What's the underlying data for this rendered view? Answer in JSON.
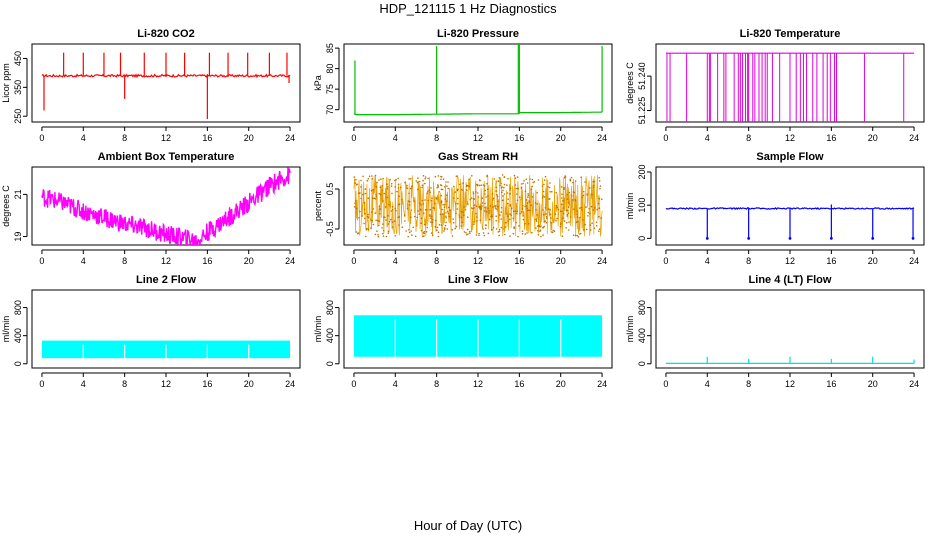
{
  "page": {
    "title": "HDP_121115  1 Hz Diagnostics",
    "xlabel": "Hour of Day (UTC)"
  },
  "chart_data": [
    {
      "type": "line",
      "title": "Li-820 CO2",
      "ylabel": "Licor ppm",
      "color": "#ff0000",
      "xlim": [
        0,
        24
      ],
      "ylim": [
        230,
        500
      ],
      "xticks": [
        0,
        4,
        8,
        12,
        16,
        20,
        24
      ],
      "xtick_labels": [
        "0",
        "4",
        "8",
        "12",
        "16",
        "20",
        "24"
      ],
      "yticks": [
        250,
        350,
        450
      ],
      "ytick_labels": [
        "250",
        "350",
        "450"
      ],
      "baseline": 390,
      "band": 8,
      "spikes": [
        [
          0.2,
          270
        ],
        [
          2.1,
          470
        ],
        [
          4.0,
          470
        ],
        [
          6.0,
          470
        ],
        [
          7.6,
          470
        ],
        [
          8.0,
          310
        ],
        [
          9.9,
          470
        ],
        [
          12.0,
          470
        ],
        [
          13.8,
          470
        ],
        [
          16.0,
          240
        ],
        [
          16.2,
          470
        ],
        [
          18.0,
          470
        ],
        [
          19.9,
          470
        ],
        [
          22.0,
          470
        ],
        [
          23.7,
          470
        ],
        [
          23.9,
          365
        ]
      ]
    },
    {
      "type": "line",
      "title": "Li-820 Pressure",
      "ylabel": "kPa",
      "color": "#00c000",
      "xlim": [
        0,
        24
      ],
      "ylim": [
        67,
        86
      ],
      "xticks": [
        0,
        4,
        8,
        12,
        16,
        20,
        24
      ],
      "xtick_labels": [
        "0",
        "4",
        "8",
        "12",
        "16",
        "20",
        "24"
      ],
      "yticks": [
        70,
        75,
        80,
        85
      ],
      "ytick_labels": [
        "70",
        "75",
        "80",
        "85"
      ],
      "baseline_series": {
        "x": [
          0,
          0.2,
          4,
          8,
          12,
          15.9,
          16.1,
          20,
          23.9
        ],
        "y": [
          69.0,
          68.8,
          68.8,
          68.9,
          69.0,
          69.0,
          69.3,
          69.3,
          69.4
        ]
      },
      "spikes": [
        [
          0.1,
          82
        ],
        [
          8.0,
          85.5
        ],
        [
          15.9,
          86
        ],
        [
          16.0,
          86
        ],
        [
          24.0,
          85.5
        ]
      ]
    },
    {
      "type": "line",
      "title": "Li-820 Temperature",
      "ylabel": "degrees C",
      "color": "#e000e0",
      "xlim": [
        0,
        24
      ],
      "ylim": [
        51.22,
        51.254
      ],
      "xticks": [
        0,
        4,
        8,
        12,
        16,
        20,
        24
      ],
      "xtick_labels": [
        "0",
        "4",
        "8",
        "12",
        "16",
        "20",
        "24"
      ],
      "yticks": [
        51.225,
        51.24
      ],
      "ytick_labels": [
        "51.225",
        "51.240"
      ],
      "top_value": 51.25,
      "drops": [
        0.1,
        0.4,
        2.0,
        4.0,
        4.2,
        4.3,
        5.0,
        5.6,
        5.8,
        6.6,
        7.0,
        7.2,
        7.4,
        7.7,
        7.9,
        8.0,
        8.4,
        8.6,
        9.0,
        9.3,
        9.6,
        9.8,
        10.3,
        11.0,
        12.0,
        12.6,
        13.0,
        13.3,
        13.6,
        14.2,
        14.6,
        15.2,
        15.6,
        15.9,
        16.3,
        16.5,
        19.2,
        23.0
      ]
    },
    {
      "type": "line",
      "title": "Ambient Box Temperature",
      "ylabel": "degrees C",
      "color": "#ff00ff",
      "xlim": [
        0,
        24
      ],
      "ylim": [
        18.6,
        22.3
      ],
      "xticks": [
        0,
        4,
        8,
        12,
        16,
        20,
        24
      ],
      "xtick_labels": [
        "0",
        "4",
        "8",
        "12",
        "16",
        "20",
        "24"
      ],
      "yticks": [
        19,
        21
      ],
      "ytick_labels": [
        "19",
        "21"
      ],
      "trend": {
        "x": [
          0,
          2,
          4,
          6,
          8,
          10,
          12,
          14,
          15,
          16,
          18,
          20,
          22,
          23,
          24
        ],
        "y": [
          20.9,
          20.6,
          20.2,
          19.9,
          19.6,
          19.4,
          19.1,
          18.9,
          18.8,
          19.2,
          19.9,
          20.6,
          21.4,
          21.7,
          21.9
        ]
      },
      "band": 0.45
    },
    {
      "type": "line",
      "title": "Gas Stream RH",
      "ylabel": "percent",
      "color": "#e8a000",
      "xlim": [
        0,
        24
      ],
      "ylim": [
        -0.9,
        1.05
      ],
      "xticks": [
        0,
        4,
        8,
        12,
        16,
        20,
        24
      ],
      "xtick_labels": [
        "0",
        "4",
        "8",
        "12",
        "16",
        "20",
        "24"
      ],
      "yticks": [
        -0.5,
        0.5
      ],
      "ytick_labels": [
        "-0.5",
        "0.5"
      ],
      "band_min": -0.7,
      "band_max": 0.85
    },
    {
      "type": "line",
      "title": "Sample Flow",
      "ylabel": "ml/min",
      "color": "#0000ff",
      "xlim": [
        0,
        24
      ],
      "ylim": [
        -20,
        215
      ],
      "xticks": [
        0,
        4,
        8,
        12,
        16,
        20,
        24
      ],
      "xtick_labels": [
        "0",
        "4",
        "8",
        "12",
        "16",
        "20",
        "24"
      ],
      "yticks": [
        0,
        100,
        200
      ],
      "ytick_labels": [
        "0",
        "100",
        "200"
      ],
      "baseline": 90,
      "band": 4,
      "drops": [
        [
          4.0,
          0
        ],
        [
          8.0,
          0
        ],
        [
          12.0,
          0
        ],
        [
          16.0,
          0
        ],
        [
          20.0,
          0
        ],
        [
          23.9,
          0
        ]
      ],
      "spikes": [
        [
          16.0,
          102
        ]
      ]
    },
    {
      "type": "area",
      "title": "Line 2 Flow",
      "ylabel": "ml/min",
      "color": "#00ffff",
      "xlim": [
        0,
        24
      ],
      "ylim": [
        -60,
        1050
      ],
      "xticks": [
        0,
        4,
        8,
        12,
        16,
        20,
        24
      ],
      "xtick_labels": [
        "0",
        "4",
        "8",
        "12",
        "16",
        "20",
        "24"
      ],
      "yticks": [
        0,
        400,
        800
      ],
      "ytick_labels": [
        "0",
        "400",
        "800"
      ],
      "band_min": 80,
      "band_max": 330,
      "gaps": [
        4.0,
        8.0,
        12.0,
        16.0,
        20.0
      ]
    },
    {
      "type": "area",
      "title": "Line 3 Flow",
      "ylabel": "ml/min",
      "color": "#00ffff",
      "xlim": [
        0,
        24
      ],
      "ylim": [
        -60,
        1050
      ],
      "xticks": [
        0,
        4,
        8,
        12,
        16,
        20,
        24
      ],
      "xtick_labels": [
        "0",
        "4",
        "8",
        "12",
        "16",
        "20",
        "24"
      ],
      "yticks": [
        0,
        400,
        800
      ],
      "ytick_labels": [
        "0",
        "400",
        "800"
      ],
      "band_min": 100,
      "band_max": 690,
      "gaps": [
        4.0,
        8.0,
        12.0,
        16.0,
        20.0
      ]
    },
    {
      "type": "line",
      "title": "Line 4 (LT) Flow",
      "ylabel": "ml/min",
      "color": "#00e0e0",
      "xlim": [
        0,
        24
      ],
      "ylim": [
        -60,
        1050
      ],
      "xticks": [
        0,
        4,
        8,
        12,
        16,
        20,
        24
      ],
      "xtick_labels": [
        "0",
        "4",
        "8",
        "12",
        "16",
        "20",
        "24"
      ],
      "yticks": [
        0,
        400,
        800
      ],
      "ytick_labels": [
        "0",
        "400",
        "800"
      ],
      "baseline": 5,
      "spikes": [
        [
          4.0,
          100
        ],
        [
          8.0,
          70
        ],
        [
          12.0,
          100
        ],
        [
          16.0,
          70
        ],
        [
          20.0,
          100
        ],
        [
          24.0,
          60
        ]
      ]
    }
  ]
}
